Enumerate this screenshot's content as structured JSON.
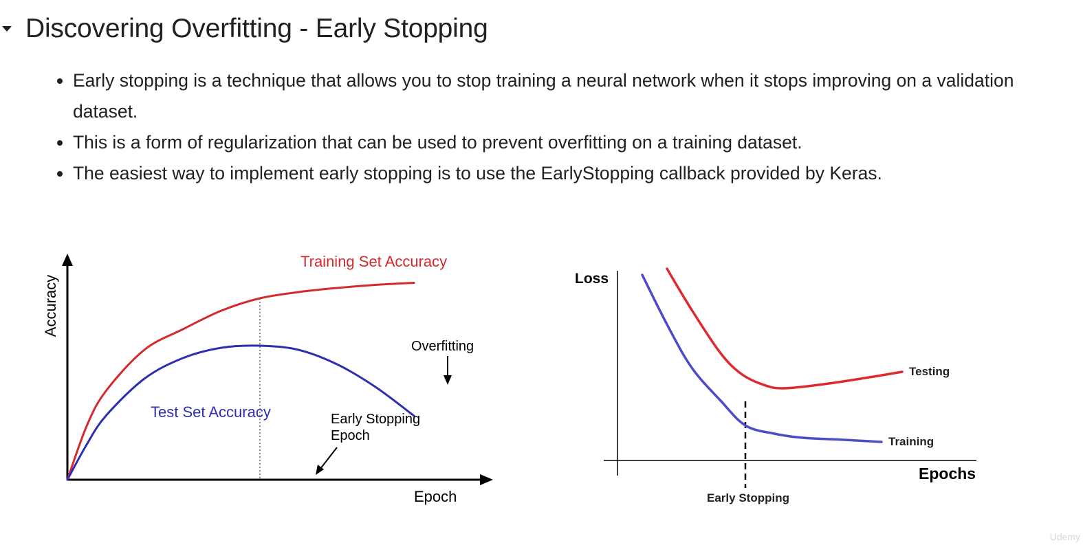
{
  "section": {
    "title": "Discovering Overfitting - Early Stopping",
    "toggle_icon": "caret-down-icon"
  },
  "bullets": [
    "Early stopping is a technique that allows you to stop training a neural network when it stops improving on a validation dataset.",
    "This is a form of regularization that can be used to prevent overfitting on a training dataset.",
    "The easiest way to implement early stopping is to use the EarlyStopping callback provided by Keras."
  ],
  "chart_data": [
    {
      "type": "line",
      "xlabel": "Epoch",
      "ylabel": "Accuracy",
      "grid": false,
      "xlim": [
        0,
        10
      ],
      "ylim": [
        0,
        10
      ],
      "x": [
        0,
        0.5,
        1,
        2,
        3,
        4,
        5,
        6,
        7,
        8,
        9
      ],
      "series": [
        {
          "name": "Training Set Accuracy",
          "color": "#d42a2e",
          "values": [
            0,
            2.6,
            4.3,
            6.3,
            7.3,
            8.2,
            8.8,
            9.1,
            9.3,
            9.45,
            9.55
          ]
        },
        {
          "name": "Test Set Accuracy",
          "color": "#2d2fb0",
          "values": [
            0,
            1.7,
            3.1,
            4.9,
            5.9,
            6.4,
            6.5,
            6.3,
            5.6,
            4.5,
            3.1
          ]
        }
      ],
      "annotations": {
        "overfitting": "Overfitting",
        "early_stop_line1": "Early Stopping",
        "early_stop_line2": "Epoch"
      },
      "early_stop_x": 5
    },
    {
      "type": "line",
      "xlabel": "Epochs",
      "ylabel": "Loss",
      "grid": false,
      "xlim": [
        0,
        10
      ],
      "ylim": [
        0,
        10
      ],
      "series": [
        {
          "name": "Testing",
          "color": "#de2a2e",
          "x": [
            1.2,
            1.8,
            2.5,
            3.0,
            3.5,
            4.0,
            5.0,
            6.0,
            6.9
          ],
          "values": [
            9.3,
            7.3,
            5.2,
            4.2,
            3.7,
            3.5,
            3.7,
            4.0,
            4.3
          ]
        },
        {
          "name": "Training",
          "color": "#4c4cc6",
          "x": [
            0.6,
            1.2,
            1.8,
            2.5,
            3.1,
            3.8,
            4.5,
            5.5,
            6.4
          ],
          "values": [
            9.0,
            6.6,
            4.5,
            2.9,
            1.7,
            1.3,
            1.1,
            1.0,
            0.9
          ]
        }
      ],
      "annotations": {
        "early_stopping": "Early Stopping"
      },
      "early_stop_x": 3.1
    }
  ],
  "watermark": "Udemy"
}
